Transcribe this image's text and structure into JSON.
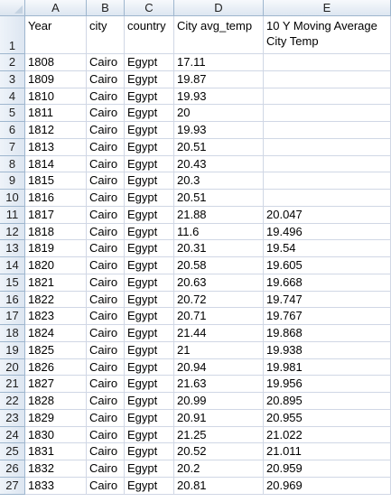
{
  "columns": [
    "A",
    "B",
    "C",
    "D",
    "E"
  ],
  "rows": [
    {
      "num": "1",
      "cells": [
        "Year",
        "city",
        "country",
        "City avg_temp",
        "10 Y Moving Average City Temp"
      ]
    },
    {
      "num": "2",
      "cells": [
        "1808",
        "Cairo",
        "Egypt",
        "17.11",
        ""
      ]
    },
    {
      "num": "3",
      "cells": [
        "1809",
        "Cairo",
        "Egypt",
        "19.87",
        ""
      ]
    },
    {
      "num": "4",
      "cells": [
        "1810",
        "Cairo",
        "Egypt",
        "19.93",
        ""
      ]
    },
    {
      "num": "5",
      "cells": [
        "1811",
        "Cairo",
        "Egypt",
        "20",
        ""
      ]
    },
    {
      "num": "6",
      "cells": [
        "1812",
        "Cairo",
        "Egypt",
        "19.93",
        ""
      ]
    },
    {
      "num": "7",
      "cells": [
        "1813",
        "Cairo",
        "Egypt",
        "20.51",
        ""
      ]
    },
    {
      "num": "8",
      "cells": [
        "1814",
        "Cairo",
        "Egypt",
        "20.43",
        ""
      ]
    },
    {
      "num": "9",
      "cells": [
        "1815",
        "Cairo",
        "Egypt",
        "20.3",
        ""
      ]
    },
    {
      "num": "10",
      "cells": [
        "1816",
        "Cairo",
        "Egypt",
        "20.51",
        ""
      ]
    },
    {
      "num": "11",
      "cells": [
        "1817",
        "Cairo",
        "Egypt",
        "21.88",
        "20.047"
      ]
    },
    {
      "num": "12",
      "cells": [
        "1818",
        "Cairo",
        "Egypt",
        "11.6",
        "19.496"
      ]
    },
    {
      "num": "13",
      "cells": [
        "1819",
        "Cairo",
        "Egypt",
        "20.31",
        "19.54"
      ]
    },
    {
      "num": "14",
      "cells": [
        "1820",
        "Cairo",
        "Egypt",
        "20.58",
        "19.605"
      ]
    },
    {
      "num": "15",
      "cells": [
        "1821",
        "Cairo",
        "Egypt",
        "20.63",
        "19.668"
      ]
    },
    {
      "num": "16",
      "cells": [
        "1822",
        "Cairo",
        "Egypt",
        "20.72",
        "19.747"
      ]
    },
    {
      "num": "17",
      "cells": [
        "1823",
        "Cairo",
        "Egypt",
        "20.71",
        "19.767"
      ]
    },
    {
      "num": "18",
      "cells": [
        "1824",
        "Cairo",
        "Egypt",
        "21.44",
        "19.868"
      ]
    },
    {
      "num": "19",
      "cells": [
        "1825",
        "Cairo",
        "Egypt",
        "21",
        "19.938"
      ]
    },
    {
      "num": "20",
      "cells": [
        "1826",
        "Cairo",
        "Egypt",
        "20.94",
        "19.981"
      ]
    },
    {
      "num": "21",
      "cells": [
        "1827",
        "Cairo",
        "Egypt",
        "21.63",
        "19.956"
      ]
    },
    {
      "num": "22",
      "cells": [
        "1828",
        "Cairo",
        "Egypt",
        "20.99",
        "20.895"
      ]
    },
    {
      "num": "23",
      "cells": [
        "1829",
        "Cairo",
        "Egypt",
        "20.91",
        "20.955"
      ]
    },
    {
      "num": "24",
      "cells": [
        "1830",
        "Cairo",
        "Egypt",
        "21.25",
        "21.022"
      ]
    },
    {
      "num": "25",
      "cells": [
        "1831",
        "Cairo",
        "Egypt",
        "20.52",
        "21.011"
      ]
    },
    {
      "num": "26",
      "cells": [
        "1832",
        "Cairo",
        "Egypt",
        "20.2",
        "20.959"
      ]
    },
    {
      "num": "27",
      "cells": [
        "1833",
        "Cairo",
        "Egypt",
        "20.81",
        "20.969"
      ]
    }
  ]
}
